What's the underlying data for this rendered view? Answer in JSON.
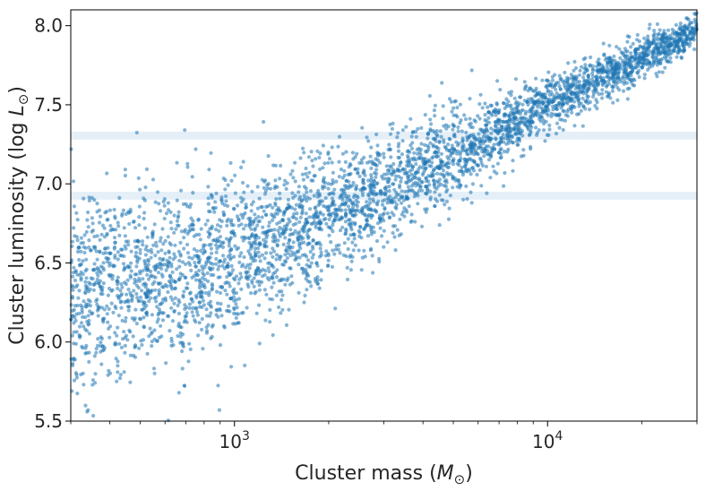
{
  "chart_data": {
    "type": "scatter",
    "title": "",
    "xlabel": "Cluster mass",
    "xlabel_unit": "M",
    "xlabel_unit_sub": "⊙",
    "ylabel": "Cluster luminosity",
    "ylabel_unit": "log L",
    "ylabel_unit_sub": "⊙",
    "x_scale": "log",
    "xlim": [
      300,
      30000
    ],
    "ylim": [
      5.5,
      8.1
    ],
    "grid": false,
    "legend": "none",
    "marker_color": "#1f77b4",
    "band_color": "#c6dbef",
    "x_major_ticks": [
      {
        "value": 1000,
        "base": "10",
        "exp": "3"
      },
      {
        "value": 10000,
        "base": "10",
        "exp": "4"
      }
    ],
    "y_ticks": [
      {
        "value": 5.5,
        "label": "5.5"
      },
      {
        "value": 6.0,
        "label": "6.0"
      },
      {
        "value": 6.5,
        "label": "6.5"
      },
      {
        "value": 7.0,
        "label": "7.0"
      },
      {
        "value": 7.5,
        "label": "7.5"
      },
      {
        "value": 8.0,
        "label": "8.0"
      }
    ],
    "horizontal_bands": [
      {
        "y_low": 7.28,
        "y_high": 7.33
      },
      {
        "y_low": 6.9,
        "y_high": 6.95
      }
    ],
    "trend": {
      "description": "dense cloud of simulated clusters",
      "points": [
        {
          "x": 300,
          "y_center": 6.3,
          "y_spread": 0.45
        },
        {
          "x": 1000,
          "y_center": 6.5,
          "y_spread": 0.35
        },
        {
          "x": 3000,
          "y_center": 6.95,
          "y_spread": 0.22
        },
        {
          "x": 10000,
          "y_center": 7.5,
          "y_spread": 0.12
        },
        {
          "x": 30000,
          "y_center": 7.97,
          "y_spread": 0.07
        }
      ],
      "n_points": 4000
    }
  }
}
